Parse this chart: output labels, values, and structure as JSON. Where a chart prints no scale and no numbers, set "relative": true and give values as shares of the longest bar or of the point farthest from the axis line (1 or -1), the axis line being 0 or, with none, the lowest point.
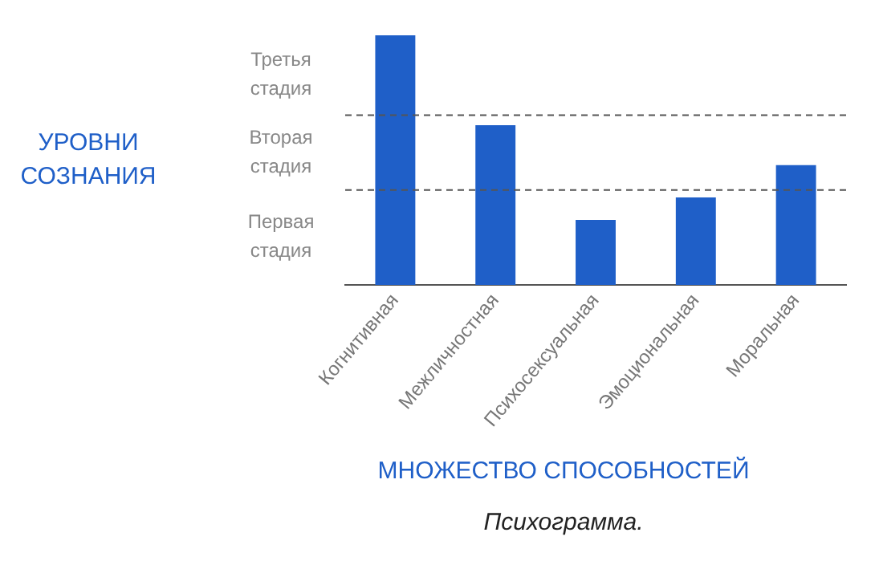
{
  "chart_data": {
    "type": "bar",
    "relative": true,
    "xlabel": "МНОЖЕСТВО СПОСОБНОСТЕЙ",
    "categories": [
      "Когнитивная",
      "Межличностная",
      "Психосексуальная",
      "Эмоциональная",
      "Моральная"
    ],
    "values": [
      1,
      0.64,
      0.26,
      0.35,
      0.48
    ],
    "color": "#1f5fc8",
    "ref_lines": [
      {
        "axis": "y",
        "value": 0.38,
        "line_style": "dashed",
        "color": "#555555"
      },
      {
        "axis": "y",
        "value": 0.68,
        "line_style": "dashed",
        "color": "#555555"
      }
    ],
    "annotations": [
      "УРОВНИ СОЗНАНИЯ",
      "Третья стадия",
      "Вторая стадия",
      "Первая стадия",
      "Психограмма."
    ],
    "grid": false,
    "legend": false
  }
}
